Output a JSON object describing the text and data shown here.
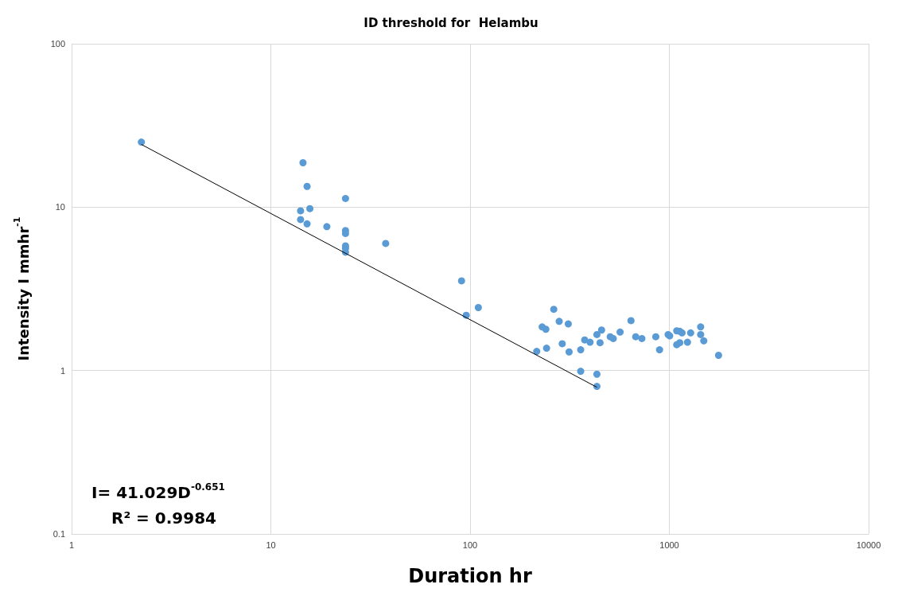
{
  "chart_data": {
    "type": "scatter",
    "title": "ID threshold for  Helambu",
    "xlabel": "Duration hr",
    "ylabel": "Intensity I mmhr$^{-1}$",
    "log": "xy",
    "grid": true,
    "marker": "circle",
    "xlim": [
      1,
      10000
    ],
    "xticks": [
      1,
      10,
      100,
      1000,
      10000
    ],
    "ylim": [
      0.1,
      100
    ],
    "yticks": [
      0.1,
      1,
      10,
      100
    ],
    "series": [
      {
        "color": "#5b9bd5",
        "x": [
          2.24,
          14.5,
          15.2,
          15.7,
          14.1,
          14.1,
          15.2,
          19.1,
          23.7,
          23.7,
          23.7,
          23.7,
          23.7,
          23.7,
          37.7,
          90.6,
          95.6,
          110,
          216,
          230,
          240,
          242,
          263,
          280,
          290,
          311,
          314,
          359,
          359,
          376,
          400,
          433,
          433,
          433,
          449,
          457,
          505,
          523,
          566,
          642,
          678,
          728,
          855,
          893,
          986,
          1004,
          1089,
          1128,
          1158,
          1089,
          1128,
          1233,
          1279,
          1436,
          1436,
          1489,
          1766
        ],
        "values": [
          25,
          18.7,
          13.4,
          9.8,
          9.5,
          8.4,
          7.9,
          7.6,
          11.3,
          7.2,
          6.9,
          5.8,
          5.6,
          5.3,
          6.0,
          3.54,
          2.18,
          2.43,
          1.31,
          1.85,
          1.79,
          1.37,
          2.37,
          2.0,
          1.46,
          1.93,
          1.3,
          1.34,
          0.99,
          1.54,
          1.49,
          1.66,
          0.95,
          0.8,
          1.48,
          1.77,
          1.61,
          1.57,
          1.72,
          2.02,
          1.61,
          1.57,
          1.61,
          1.34,
          1.66,
          1.63,
          1.75,
          1.74,
          1.7,
          1.44,
          1.48,
          1.49,
          1.7,
          1.85,
          1.66,
          1.52,
          1.24
        ]
      },
      {
        "type": "line",
        "color": "#000000",
        "marker": "none",
        "x": [
          2.24,
          433
        ],
        "values": [
          24.2,
          0.79
        ]
      }
    ],
    "annotations": [
      "I= 41.029D$^{-0.651}$",
      "R² = 0.9984"
    ]
  }
}
